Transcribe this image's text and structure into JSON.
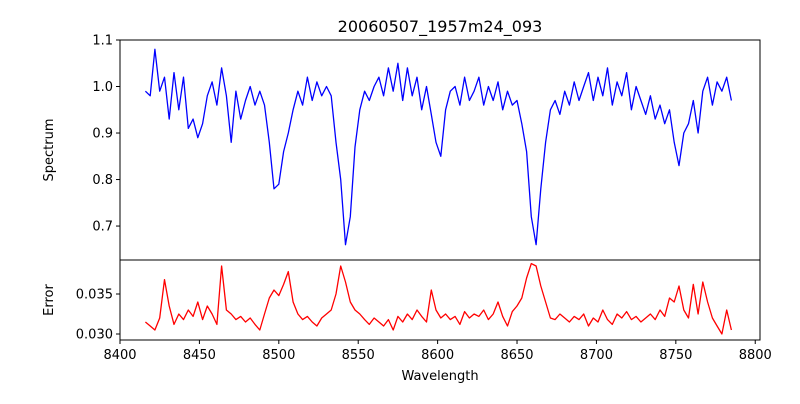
{
  "chart_data": {
    "type": "line",
    "title": "20060507_1957m24_093",
    "xlabel": "Wavelength",
    "xlim": [
      8400,
      8803
    ],
    "xticks": [
      8400,
      8450,
      8500,
      8550,
      8600,
      8650,
      8700,
      8750,
      8800
    ],
    "panels": [
      {
        "name": "spectrum",
        "ylabel": "Spectrum",
        "ylim": [
          0.627,
          1.1
        ],
        "yticks": [
          0.7,
          0.8,
          0.9,
          1.0,
          1.1
        ],
        "ytick_labels": [
          "0.7",
          "0.8",
          "0.9",
          "1.0",
          "1.1"
        ],
        "color": "#0000ff",
        "values": [
          0.99,
          0.98,
          1.08,
          0.99,
          1.02,
          0.93,
          1.03,
          0.95,
          1.02,
          0.91,
          0.93,
          0.89,
          0.92,
          0.98,
          1.01,
          0.96,
          1.04,
          0.98,
          0.88,
          0.99,
          0.93,
          0.97,
          1.0,
          0.96,
          0.99,
          0.96,
          0.88,
          0.78,
          0.79,
          0.86,
          0.9,
          0.95,
          0.99,
          0.96,
          1.02,
          0.97,
          1.01,
          0.98,
          1.0,
          0.98,
          0.88,
          0.8,
          0.66,
          0.72,
          0.87,
          0.95,
          0.99,
          0.97,
          1.0,
          1.02,
          0.98,
          1.04,
          0.99,
          1.05,
          0.97,
          1.04,
          0.98,
          1.02,
          0.95,
          1.0,
          0.94,
          0.88,
          0.85,
          0.95,
          0.99,
          1.0,
          0.96,
          1.02,
          0.97,
          0.99,
          1.02,
          0.96,
          1.0,
          0.97,
          1.01,
          0.95,
          0.99,
          0.96,
          0.97,
          0.92,
          0.86,
          0.72,
          0.66,
          0.78,
          0.88,
          0.95,
          0.97,
          0.94,
          0.99,
          0.96,
          1.01,
          0.97,
          1.0,
          1.03,
          0.97,
          1.02,
          0.98,
          1.04,
          0.96,
          1.01,
          0.98,
          1.03,
          0.95,
          1.0,
          0.97,
          0.94,
          0.98,
          0.93,
          0.96,
          0.92,
          0.95,
          0.88,
          0.83,
          0.9,
          0.92,
          0.97,
          0.9,
          0.99,
          1.02,
          0.96,
          1.01,
          0.99,
          1.02,
          0.97
        ]
      },
      {
        "name": "error",
        "ylabel": "Error",
        "ylim": [
          0.02925,
          0.03925
        ],
        "yticks": [
          0.03,
          0.035
        ],
        "ytick_labels": [
          "0.030",
          "0.035"
        ],
        "color": "#ff0000",
        "values": [
          0.0315,
          0.031,
          0.0305,
          0.032,
          0.0368,
          0.0335,
          0.0312,
          0.0325,
          0.0318,
          0.033,
          0.0322,
          0.034,
          0.0318,
          0.0335,
          0.0325,
          0.0312,
          0.0385,
          0.033,
          0.0325,
          0.0318,
          0.0322,
          0.0315,
          0.032,
          0.0312,
          0.0305,
          0.0325,
          0.0345,
          0.0355,
          0.0348,
          0.0362,
          0.0378,
          0.034,
          0.0325,
          0.0318,
          0.0322,
          0.0315,
          0.031,
          0.032,
          0.0325,
          0.033,
          0.035,
          0.0385,
          0.0365,
          0.034,
          0.033,
          0.0325,
          0.0318,
          0.0312,
          0.032,
          0.0315,
          0.031,
          0.0318,
          0.0305,
          0.0322,
          0.0315,
          0.0325,
          0.0318,
          0.033,
          0.0322,
          0.0315,
          0.0355,
          0.033,
          0.032,
          0.0325,
          0.0318,
          0.0322,
          0.0312,
          0.0328,
          0.032,
          0.0325,
          0.0322,
          0.033,
          0.0318,
          0.0325,
          0.034,
          0.0322,
          0.031,
          0.0328,
          0.0335,
          0.0345,
          0.037,
          0.0388,
          0.0385,
          0.036,
          0.034,
          0.032,
          0.0318,
          0.0325,
          0.032,
          0.0315,
          0.0322,
          0.0318,
          0.0325,
          0.031,
          0.032,
          0.0315,
          0.033,
          0.0318,
          0.0312,
          0.0325,
          0.032,
          0.0328,
          0.0318,
          0.0322,
          0.0315,
          0.032,
          0.0325,
          0.0318,
          0.033,
          0.0322,
          0.0345,
          0.034,
          0.036,
          0.033,
          0.032,
          0.0362,
          0.0325,
          0.0365,
          0.034,
          0.032,
          0.031,
          0.03,
          0.033,
          0.0305
        ]
      }
    ],
    "x_start": 8416,
    "x_step": 3
  }
}
